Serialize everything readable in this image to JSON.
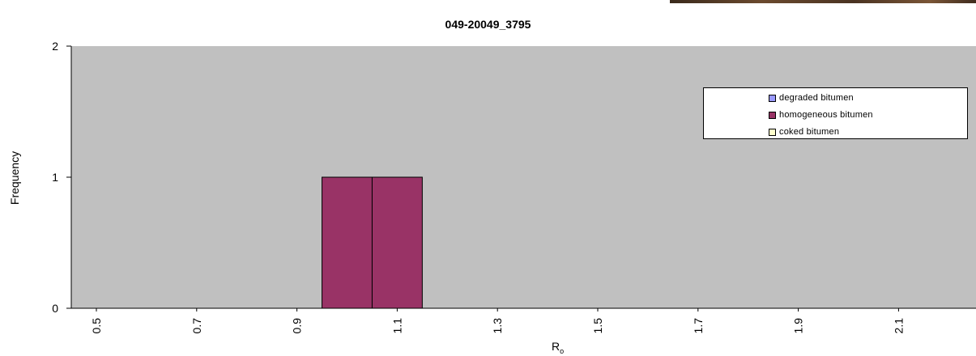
{
  "chart_data": {
    "type": "bar",
    "title": "049-20049_3795",
    "xlabel": "R",
    "xlabel_sub": "o",
    "ylabel": "Frequency",
    "x_tick_labels": [
      "0.5",
      "0.7",
      "0.9",
      "1.1",
      "1.3",
      "1.5",
      "1.7",
      "1.9",
      "2.1"
    ],
    "y_ticks": [
      "0",
      "1",
      "2"
    ],
    "ylim": [
      0,
      2
    ],
    "grid": false,
    "plot_background": "#c0c0c0",
    "bin_width": 0.1,
    "series": [
      {
        "name": "degraded bitumen",
        "color": "#9999ff",
        "bars": []
      },
      {
        "name": "homogeneous bitumen",
        "color": "#993366",
        "bars": [
          {
            "x": 1.0,
            "value": 1
          },
          {
            "x": 1.1,
            "value": 1
          }
        ]
      },
      {
        "name": "coked bitumen",
        "color": "#ffffcc",
        "bars": []
      }
    ],
    "legend_position": "top-right"
  }
}
